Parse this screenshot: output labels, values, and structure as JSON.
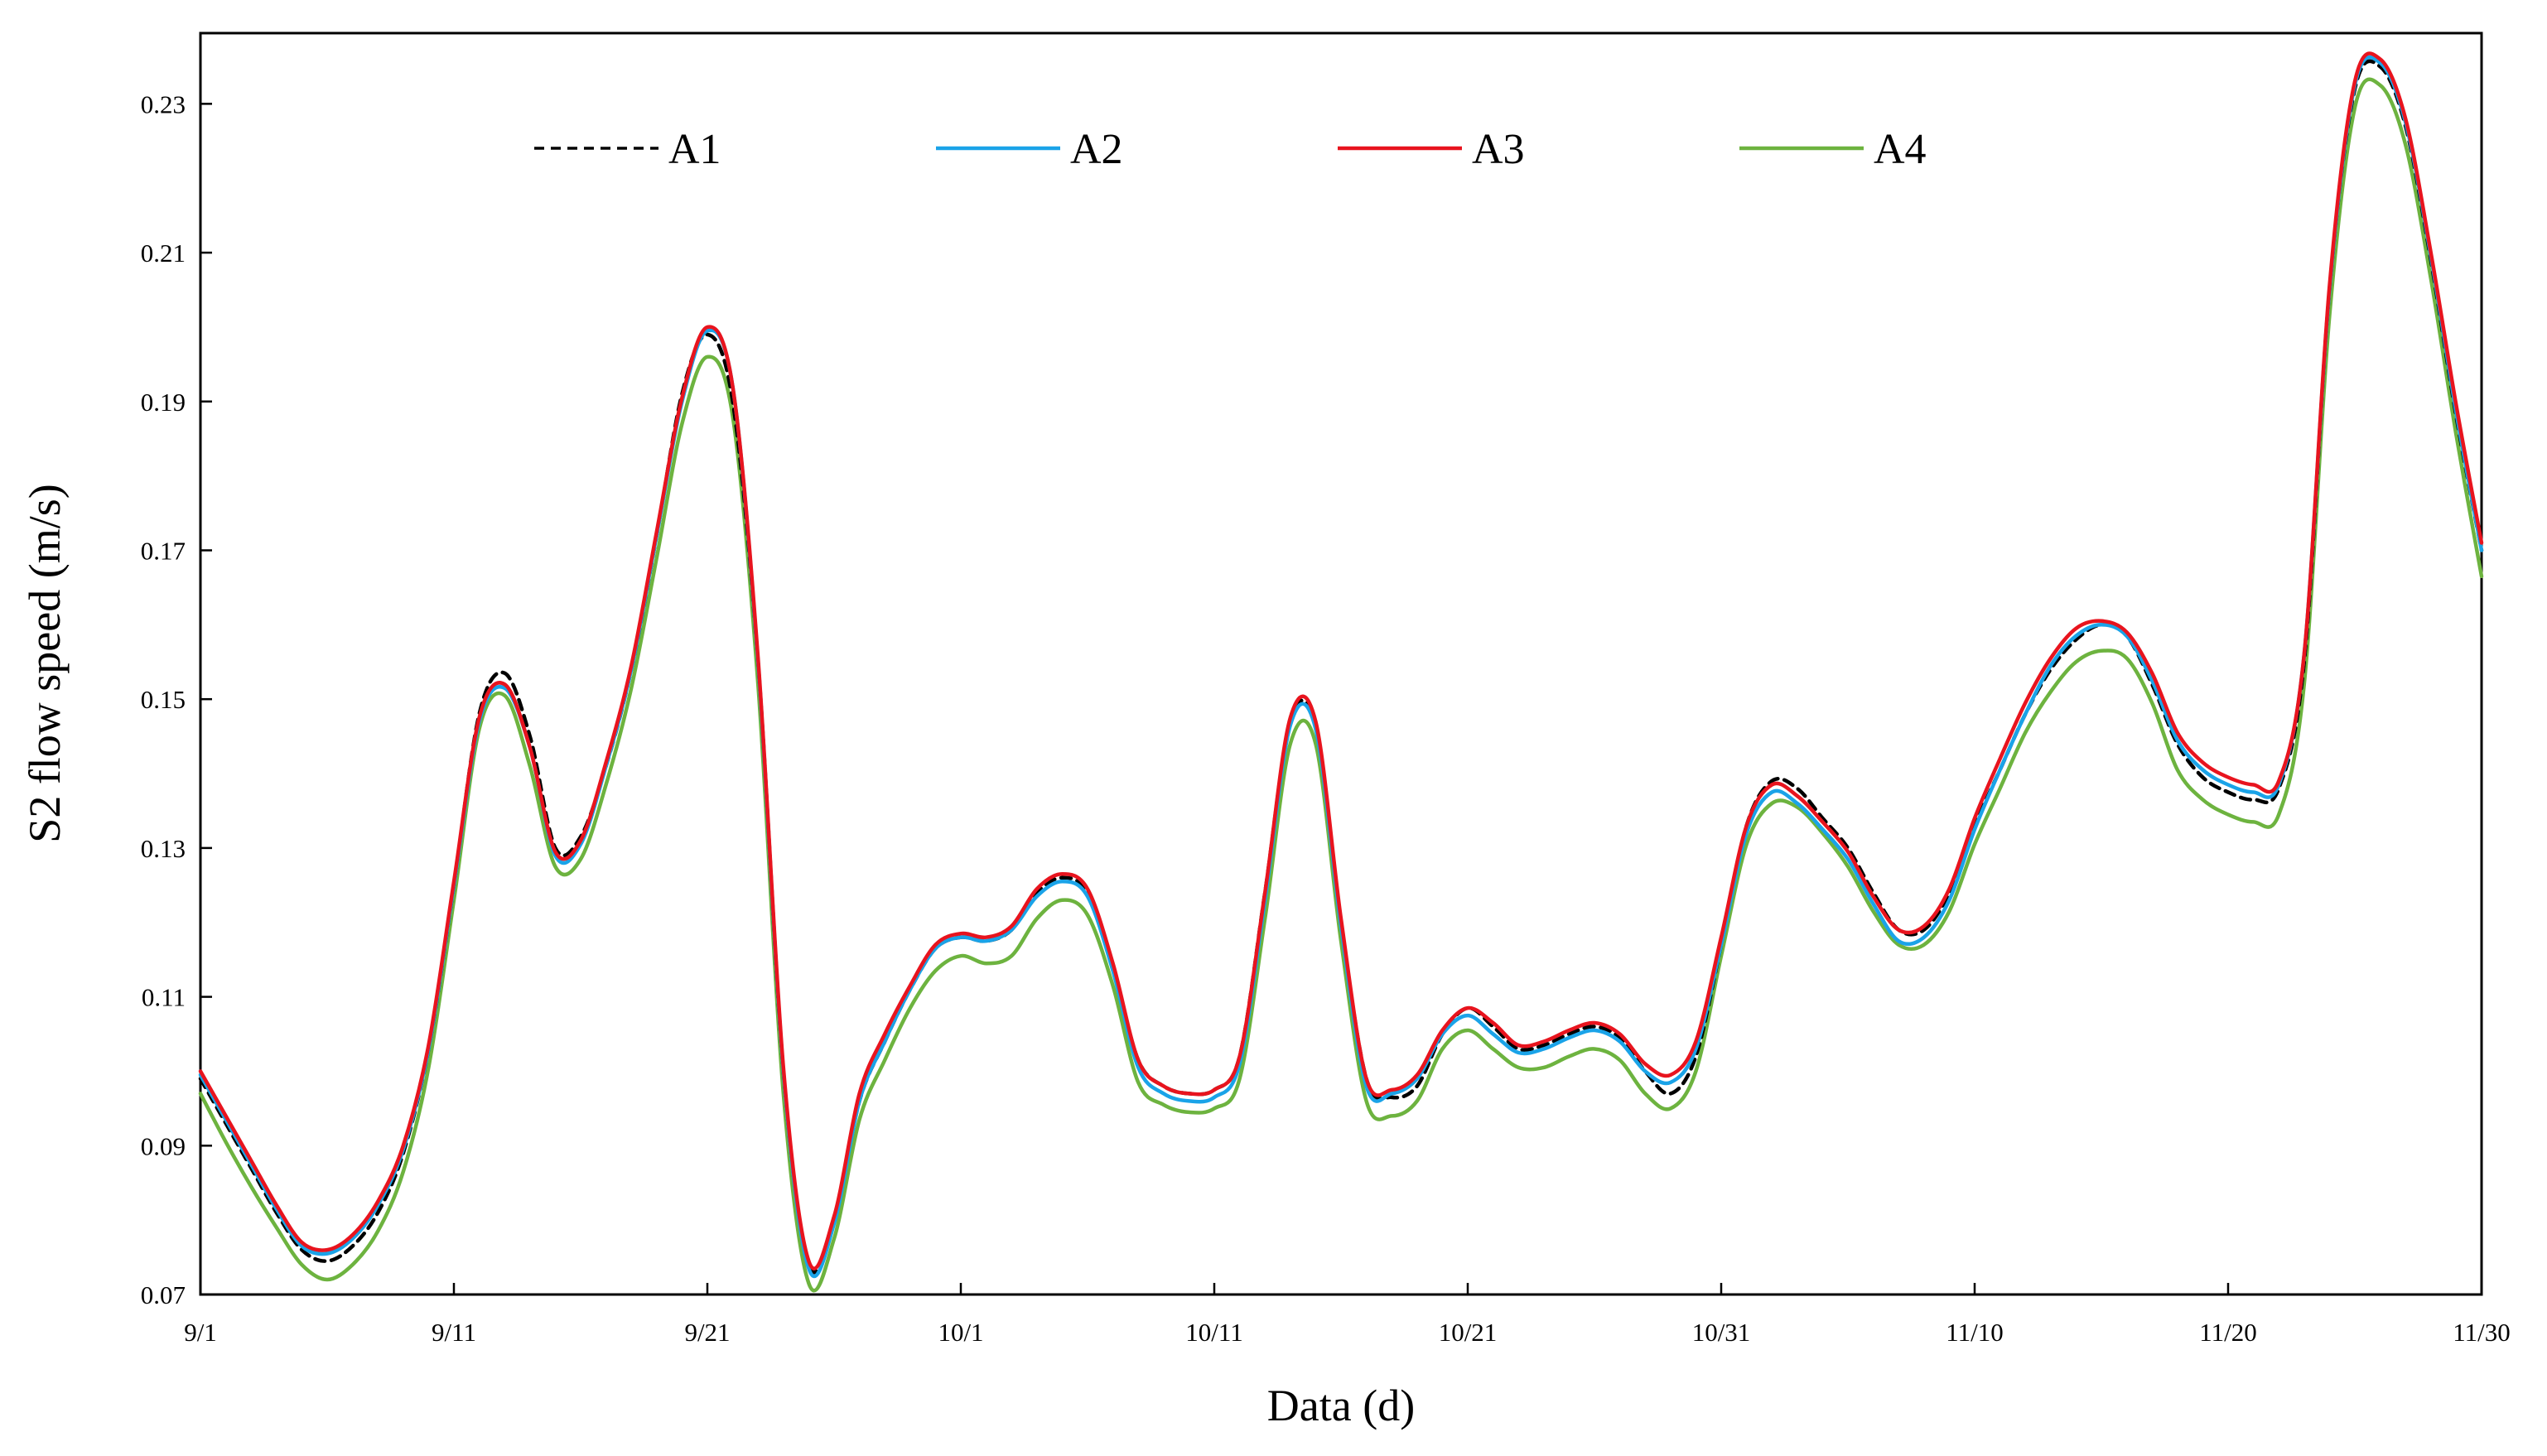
{
  "chart_data": {
    "type": "line",
    "title": "",
    "xlabel": "Data (d)",
    "ylabel": "S2 flow speed (m/s)",
    "x_tick_labels": [
      "9/1",
      "9/11",
      "9/21",
      "10/1",
      "10/11",
      "10/21",
      "10/31",
      "11/10",
      "11/20",
      "11/30"
    ],
    "y_ticks": [
      "0.07",
      "0.09",
      "0.11",
      "0.13",
      "0.15",
      "0.17",
      "0.19",
      "0.21",
      "0.23"
    ],
    "ylim": [
      0.07,
      0.2395
    ],
    "xlim": [
      "9/1",
      "11/30"
    ],
    "grid": false,
    "legend_position": "top",
    "x": [
      "9/1",
      "9/2",
      "9/3",
      "9/4",
      "9/5",
      "9/6",
      "9/7",
      "9/8",
      "9/9",
      "9/10",
      "9/11",
      "9/12",
      "9/13",
      "9/14",
      "9/15",
      "9/16",
      "9/17",
      "9/18",
      "9/19",
      "9/20",
      "9/21",
      "9/22",
      "9/23",
      "9/24",
      "9/25",
      "9/26",
      "9/27",
      "9/28",
      "9/29",
      "9/30",
      "10/1",
      "10/2",
      "10/3",
      "10/4",
      "10/5",
      "10/6",
      "10/7",
      "10/8",
      "10/9",
      "10/10",
      "10/11",
      "10/12",
      "10/13",
      "10/14",
      "10/15",
      "10/16",
      "10/17",
      "10/18",
      "10/19",
      "10/20",
      "10/21",
      "10/22",
      "10/23",
      "10/24",
      "10/25",
      "10/26",
      "10/27",
      "10/28",
      "10/29",
      "10/30",
      "10/31",
      "11/1",
      "11/2",
      "11/3",
      "11/4",
      "11/5",
      "11/6",
      "11/7",
      "11/8",
      "11/9",
      "11/10",
      "11/11",
      "11/12",
      "11/13",
      "11/14",
      "11/15",
      "11/16",
      "11/17",
      "11/18",
      "11/19",
      "11/20",
      "11/21",
      "11/22",
      "11/23",
      "11/24",
      "11/25",
      "11/26",
      "11/27",
      "11/28",
      "11/29",
      "11/30"
    ],
    "series": [
      {
        "name": "A1",
        "color": "#000000",
        "dash": "dashed",
        "values": [
          0.099,
          0.093,
          0.087,
          0.081,
          0.076,
          0.0745,
          0.0765,
          0.081,
          0.089,
          0.103,
          0.125,
          0.148,
          0.1535,
          0.145,
          0.13,
          0.1315,
          0.141,
          0.154,
          0.172,
          0.191,
          0.199,
          0.19,
          0.155,
          0.1,
          0.074,
          0.08,
          0.096,
          0.104,
          0.111,
          0.1165,
          0.118,
          0.1175,
          0.119,
          0.124,
          0.126,
          0.124,
          0.114,
          0.1015,
          0.098,
          0.097,
          0.0975,
          0.102,
          0.124,
          0.147,
          0.1465,
          0.12,
          0.099,
          0.0965,
          0.098,
          0.105,
          0.1085,
          0.106,
          0.103,
          0.1035,
          0.105,
          0.106,
          0.1045,
          0.1,
          0.097,
          0.102,
          0.117,
          0.133,
          0.139,
          0.138,
          0.134,
          0.13,
          0.124,
          0.119,
          0.119,
          0.124,
          0.133,
          0.1405,
          0.148,
          0.154,
          0.158,
          0.16,
          0.1585,
          0.152,
          0.144,
          0.1395,
          0.1375,
          0.1365,
          0.138,
          0.155,
          0.205,
          0.232,
          0.235,
          0.227,
          0.209,
          0.188,
          0.17
        ]
      },
      {
        "name": "A2",
        "color": "#1aa3e8",
        "dash": "solid",
        "values": [
          0.0995,
          0.0935,
          0.0875,
          0.0815,
          0.0765,
          0.0755,
          0.0775,
          0.082,
          0.0895,
          0.103,
          0.125,
          0.147,
          0.1515,
          0.1435,
          0.129,
          0.1305,
          0.141,
          0.154,
          0.172,
          0.19,
          0.1995,
          0.192,
          0.155,
          0.1,
          0.0735,
          0.0795,
          0.096,
          0.104,
          0.111,
          0.1165,
          0.118,
          0.1175,
          0.119,
          0.1235,
          0.1255,
          0.1235,
          0.1135,
          0.1005,
          0.097,
          0.096,
          0.0965,
          0.101,
          0.123,
          0.1465,
          0.146,
          0.1195,
          0.098,
          0.097,
          0.099,
          0.105,
          0.1075,
          0.105,
          0.1025,
          0.103,
          0.1045,
          0.1055,
          0.104,
          0.1,
          0.0985,
          0.103,
          0.117,
          0.132,
          0.1375,
          0.136,
          0.1325,
          0.1285,
          0.1225,
          0.1175,
          0.118,
          0.123,
          0.1325,
          0.1405,
          0.148,
          0.1545,
          0.1585,
          0.16,
          0.1585,
          0.1525,
          0.1445,
          0.1405,
          0.1385,
          0.1375,
          0.1385,
          0.156,
          0.205,
          0.2325,
          0.2355,
          0.2275,
          0.2095,
          0.1885,
          0.17
        ]
      },
      {
        "name": "A3",
        "color": "#e8141e",
        "dash": "solid",
        "values": [
          0.1,
          0.094,
          0.088,
          0.082,
          0.077,
          0.076,
          0.078,
          0.0825,
          0.09,
          0.1035,
          0.1255,
          0.1475,
          0.152,
          0.1435,
          0.1295,
          0.131,
          0.1415,
          0.1545,
          0.1725,
          0.1905,
          0.2,
          0.192,
          0.1555,
          0.1005,
          0.0745,
          0.0805,
          0.097,
          0.105,
          0.1115,
          0.117,
          0.1185,
          0.118,
          0.1195,
          0.1245,
          0.1265,
          0.1245,
          0.1145,
          0.1015,
          0.098,
          0.097,
          0.0975,
          0.102,
          0.124,
          0.1475,
          0.147,
          0.1205,
          0.099,
          0.0975,
          0.0995,
          0.1055,
          0.1085,
          0.1065,
          0.1035,
          0.104,
          0.1055,
          0.1065,
          0.105,
          0.101,
          0.0995,
          0.104,
          0.118,
          0.133,
          0.1385,
          0.137,
          0.1335,
          0.1295,
          0.1235,
          0.119,
          0.1195,
          0.1245,
          0.134,
          0.142,
          0.1495,
          0.1555,
          0.1595,
          0.1605,
          0.159,
          0.1535,
          0.1455,
          0.1415,
          0.1395,
          0.1385,
          0.139,
          0.156,
          0.2055,
          0.233,
          0.236,
          0.228,
          0.21,
          0.1895,
          0.171
        ]
      },
      {
        "name": "A4",
        "color": "#6db33f",
        "dash": "solid",
        "values": [
          0.097,
          0.0905,
          0.0845,
          0.079,
          0.074,
          0.072,
          0.074,
          0.0785,
          0.0865,
          0.1005,
          0.123,
          0.146,
          0.1505,
          0.141,
          0.1275,
          0.1285,
          0.1385,
          0.1515,
          0.169,
          0.187,
          0.196,
          0.188,
          0.152,
          0.097,
          0.0715,
          0.0775,
          0.0935,
          0.1015,
          0.1085,
          0.1135,
          0.1155,
          0.1145,
          0.1155,
          0.1205,
          0.123,
          0.121,
          0.1115,
          0.0985,
          0.0955,
          0.0945,
          0.095,
          0.099,
          0.1205,
          0.144,
          0.144,
          0.1175,
          0.096,
          0.094,
          0.096,
          0.103,
          0.1055,
          0.103,
          0.1005,
          0.1005,
          0.102,
          0.103,
          0.1015,
          0.097,
          0.095,
          0.1,
          0.1155,
          0.1305,
          0.136,
          0.1355,
          0.132,
          0.1275,
          0.1215,
          0.117,
          0.117,
          0.1215,
          0.1305,
          0.138,
          0.1455,
          0.151,
          0.155,
          0.1565,
          0.1555,
          0.1495,
          0.1405,
          0.1365,
          0.1345,
          0.1335,
          0.1345,
          0.152,
          0.2015,
          0.2295,
          0.2325,
          0.2245,
          0.2065,
          0.1855,
          0.1665
        ]
      }
    ]
  }
}
